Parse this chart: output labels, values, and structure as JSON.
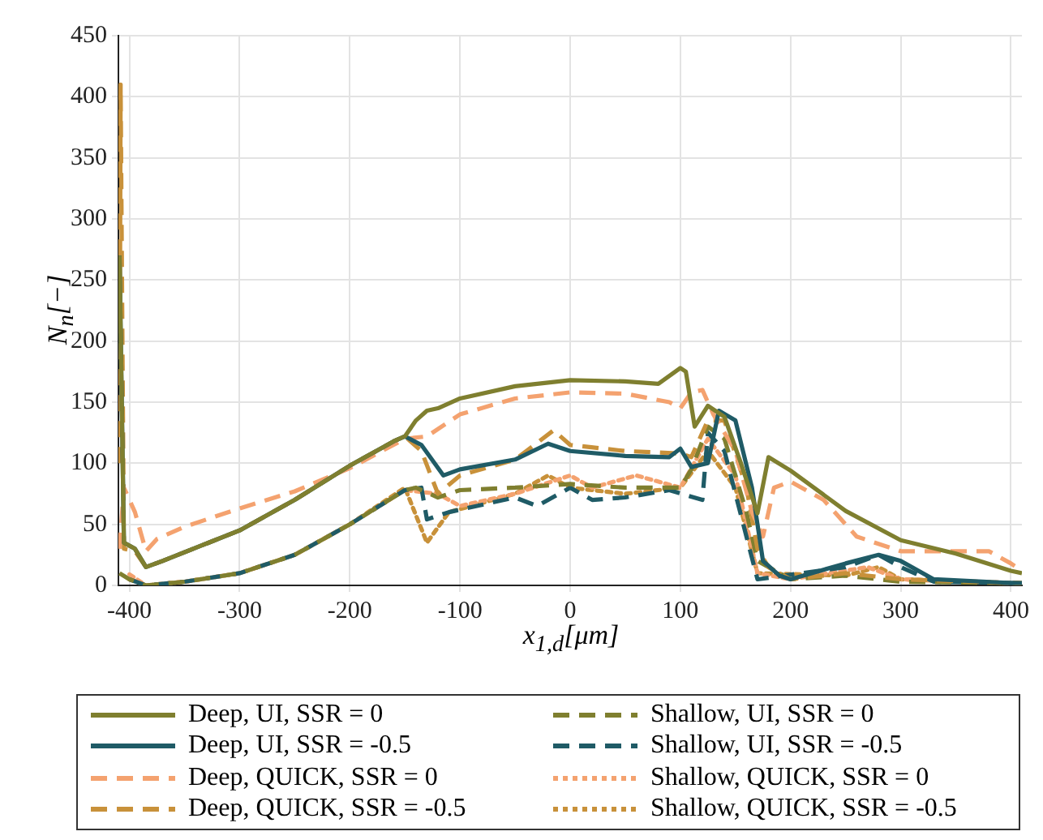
{
  "chart_data": {
    "type": "line",
    "xlabel": "x$_{1,d}$[μm]",
    "ylabel": "N$_{n}$[−]",
    "xlim": [
      -410,
      410
    ],
    "xticks": [
      -400,
      -300,
      -200,
      -100,
      0,
      100,
      200,
      300,
      400
    ],
    "ylim": [
      0,
      450
    ],
    "yticks": [
      0,
      50,
      100,
      150,
      200,
      250,
      300,
      350,
      400,
      450
    ],
    "grid": true,
    "legend": "bottom",
    "marker": "none",
    "series": [
      {
        "name": "Deep, UI, SSR = 0",
        "color": "#7f7f2f",
        "line_style": "solid",
        "x": [
          -409,
          -405,
          -395,
          -385,
          -370,
          -300,
          -250,
          -200,
          -160,
          -150,
          -140,
          -130,
          -120,
          -100,
          -50,
          0,
          50,
          80,
          100,
          105,
          113,
          125,
          140,
          155,
          170,
          180,
          200,
          250,
          300,
          350,
          400,
          410
        ],
        "values": [
          270,
          35,
          30,
          15,
          20,
          45,
          70,
          98,
          118,
          122,
          135,
          143,
          145,
          153,
          163,
          168,
          167,
          165,
          178,
          175,
          130,
          147,
          138,
          100,
          59,
          105,
          94,
          61,
          37,
          26,
          12,
          10
        ]
      },
      {
        "name": "Deep, UI, SSR = -0.5",
        "color": "#1f5b66",
        "line_style": "solid",
        "x": [
          -409,
          -405,
          -395,
          -385,
          -370,
          -300,
          -250,
          -200,
          -160,
          -150,
          -135,
          -115,
          -100,
          -50,
          -20,
          0,
          50,
          90,
          100,
          110,
          125,
          135,
          150,
          165,
          175,
          190,
          200,
          250,
          280,
          300,
          330,
          400,
          410
        ],
        "values": [
          270,
          35,
          30,
          15,
          20,
          45,
          70,
          98,
          118,
          122,
          115,
          90,
          95,
          103,
          116,
          110,
          106,
          105,
          112,
          97,
          100,
          143,
          135,
          80,
          20,
          8,
          5,
          18,
          25,
          20,
          5,
          2,
          2
        ]
      },
      {
        "name": "Deep, QUICK, SSR = 0",
        "color": "#f4a26f",
        "line_style": "dashed",
        "x": [
          -409,
          -405,
          -395,
          -385,
          -375,
          -350,
          -300,
          -250,
          -200,
          -150,
          -130,
          -100,
          -50,
          0,
          50,
          90,
          100,
          110,
          120,
          130,
          150,
          165,
          175,
          185,
          200,
          230,
          260,
          300,
          350,
          380,
          400,
          410
        ],
        "values": [
          30,
          80,
          60,
          28,
          38,
          48,
          63,
          77,
          96,
          120,
          122,
          140,
          153,
          158,
          157,
          150,
          145,
          158,
          160,
          140,
          110,
          60,
          40,
          80,
          85,
          70,
          40,
          28,
          28,
          28,
          18,
          12
        ]
      },
      {
        "name": "Deep, QUICK, SSR = -0.5",
        "color": "#c8913a",
        "line_style": "dashed",
        "x": [
          -409,
          -408,
          -405,
          -395,
          -385,
          -370,
          -300,
          -250,
          -200,
          -160,
          -150,
          -135,
          -120,
          -100,
          -50,
          -15,
          0,
          50,
          100,
          110,
          125,
          140,
          160,
          170,
          180,
          200,
          250,
          300,
          400,
          410
        ],
        "values": [
          100,
          410,
          30,
          28,
          15,
          20,
          45,
          70,
          98,
          118,
          122,
          110,
          75,
          90,
          103,
          127,
          115,
          110,
          108,
          105,
          135,
          135,
          80,
          30,
          15,
          5,
          10,
          5,
          2,
          2
        ]
      },
      {
        "name": "Shallow, UI, SSR = 0",
        "color": "#7f7f2f",
        "line_style": "dashed",
        "x": [
          -409,
          -400,
          -385,
          -350,
          -300,
          -250,
          -200,
          -150,
          -140,
          -120,
          -100,
          -50,
          0,
          50,
          100,
          110,
          125,
          140,
          160,
          170,
          200,
          250,
          280,
          300,
          400,
          410
        ],
        "values": [
          10,
          5,
          0,
          3,
          10,
          25,
          50,
          78,
          80,
          72,
          78,
          80,
          83,
          80,
          80,
          95,
          130,
          120,
          60,
          20,
          5,
          8,
          5,
          3,
          2,
          2
        ]
      },
      {
        "name": "Shallow, UI, SSR = -0.5",
        "color": "#1f5b66",
        "line_style": "dashed",
        "x": [
          -400,
          -385,
          -350,
          -300,
          -250,
          -200,
          -150,
          -135,
          -130,
          -110,
          -50,
          -30,
          0,
          20,
          50,
          90,
          120,
          125,
          140,
          160,
          170,
          250,
          280,
          300,
          330,
          400,
          410
        ],
        "values": [
          5,
          0,
          3,
          10,
          25,
          50,
          78,
          80,
          54,
          60,
          72,
          65,
          80,
          70,
          72,
          78,
          70,
          125,
          110,
          40,
          5,
          15,
          25,
          15,
          3,
          2,
          2
        ]
      },
      {
        "name": "Shallow, QUICK, SSR = 0",
        "color": "#f4a26f",
        "line_style": "dotted",
        "x": [
          -400,
          -385,
          -350,
          -300,
          -250,
          -200,
          -150,
          -120,
          -100,
          -50,
          0,
          20,
          60,
          100,
          125,
          150,
          170,
          200,
          270,
          300,
          400,
          410
        ],
        "values": [
          9,
          0,
          3,
          10,
          25,
          50,
          78,
          75,
          65,
          75,
          90,
          80,
          90,
          80,
          120,
          90,
          10,
          5,
          15,
          5,
          2,
          2
        ]
      },
      {
        "name": "Shallow, QUICK, SSR = -0.5",
        "color": "#c8913a",
        "line_style": "dotted",
        "x": [
          -400,
          -385,
          -350,
          -300,
          -250,
          -200,
          -150,
          -130,
          -110,
          -50,
          -20,
          0,
          50,
          100,
          125,
          150,
          170,
          250,
          280,
          300,
          400,
          410
        ],
        "values": [
          5,
          0,
          3,
          10,
          25,
          50,
          80,
          35,
          60,
          75,
          90,
          80,
          75,
          80,
          110,
          80,
          10,
          8,
          15,
          5,
          2,
          2
        ]
      }
    ]
  }
}
